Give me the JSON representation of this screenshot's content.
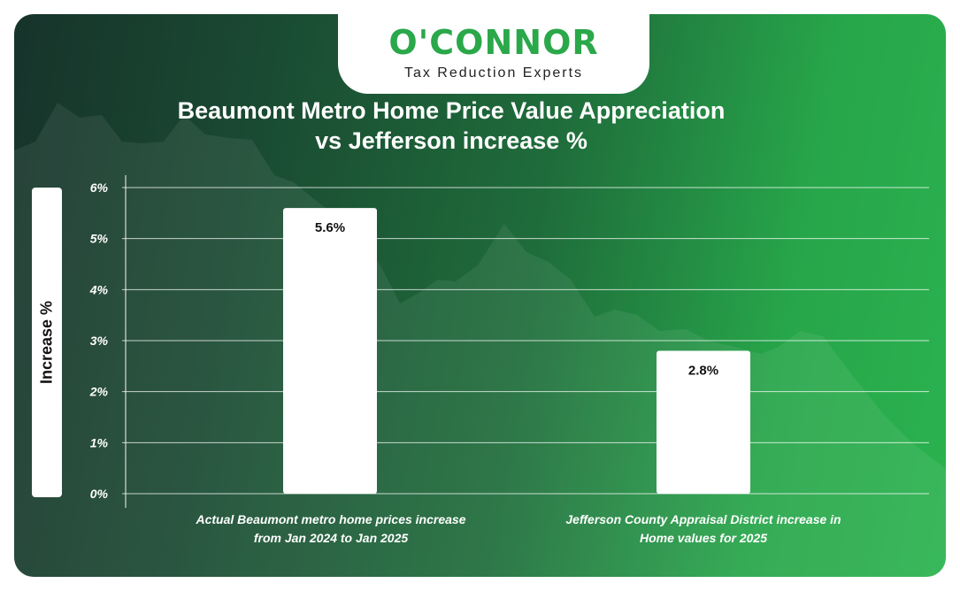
{
  "brand": {
    "name": "O'CONNOR",
    "tagline": "Tax Reduction Experts",
    "color": "#2aa84a"
  },
  "chart_data": {
    "type": "bar",
    "title_line1": "Beaumont Metro Home Price Value Appreciation",
    "title_line2": "vs Jefferson increase %",
    "ylabel": "Increase %",
    "xlabel": "",
    "ylim": [
      0,
      6
    ],
    "yticks": [
      "0%",
      "1%",
      "2%",
      "3%",
      "4%",
      "5%",
      "6%"
    ],
    "grid": true,
    "categories": [
      {
        "line1": "Actual Beaumont metro home prices increase",
        "line2": "from Jan 2024 to Jan 2025"
      },
      {
        "line1": "Jefferson County Appraisal District increase in",
        "line2": "Home values for 2025"
      }
    ],
    "values": [
      5.6,
      2.8
    ],
    "data_labels": [
      "5.6%",
      "2.8%"
    ],
    "bar_color": "#ffffff"
  }
}
